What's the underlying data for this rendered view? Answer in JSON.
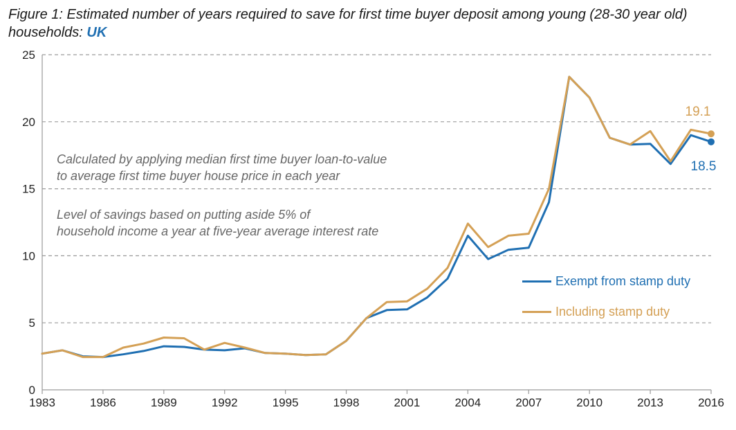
{
  "title": {
    "prefix": "Figure 1: Estimated number of years required to save for first time buyer deposit among young (28-30 year old) households: ",
    "highlight": "UK"
  },
  "annotations": {
    "line1": "Calculated by applying median first time buyer loan-to-value",
    "line2": "to average first time buyer house price in each year",
    "line3": "Level of savings based on putting aside 5% of",
    "line4": "household income a year at five-year average interest rate"
  },
  "colors": {
    "exempt": "#1f6fb2",
    "including": "#d4a055",
    "grid": "#9a9a9a",
    "axis": "#9a9a9a"
  },
  "chart_data": {
    "type": "line",
    "title": "",
    "xlabel": "",
    "ylabel": "",
    "x": [
      1983,
      1984,
      1985,
      1986,
      1987,
      1988,
      1989,
      1990,
      1991,
      1992,
      1993,
      1994,
      1995,
      1996,
      1997,
      1998,
      1999,
      2000,
      2001,
      2002,
      2003,
      2004,
      2005,
      2006,
      2007,
      2008,
      2009,
      2010,
      2011,
      2012,
      2013,
      2014,
      2015,
      2016
    ],
    "series": [
      {
        "name": "Exempt from stamp duty",
        "color": "#1f6fb2",
        "values": [
          2.7,
          2.95,
          2.5,
          2.45,
          2.65,
          2.9,
          3.25,
          3.2,
          3.0,
          2.95,
          3.1,
          2.75,
          2.7,
          2.6,
          2.65,
          3.65,
          5.35,
          5.95,
          6.0,
          6.9,
          8.3,
          11.5,
          9.75,
          10.45,
          10.6,
          14.0,
          23.35,
          21.8,
          18.8,
          18.3,
          18.35,
          16.85,
          19.0,
          18.5
        ]
      },
      {
        "name": "Including stamp duty",
        "color": "#d4a055",
        "values": [
          2.7,
          2.95,
          2.45,
          2.45,
          3.15,
          3.45,
          3.9,
          3.85,
          3.0,
          3.5,
          3.15,
          2.75,
          2.7,
          2.6,
          2.65,
          3.65,
          5.35,
          6.55,
          6.6,
          7.55,
          9.1,
          12.4,
          10.65,
          11.5,
          11.65,
          15.0,
          23.35,
          21.8,
          18.8,
          18.3,
          19.3,
          17.05,
          19.4,
          19.1
        ]
      }
    ],
    "end_labels": {
      "including": "19.1",
      "exempt": "18.5"
    },
    "ylim": [
      0,
      25
    ],
    "yticks": [
      0,
      5,
      10,
      15,
      20,
      25
    ],
    "xticks": [
      "1983",
      "1986",
      "1989",
      "1992",
      "1995",
      "1998",
      "2001",
      "2004",
      "2007",
      "2010",
      "2013",
      "2016"
    ],
    "xlim": [
      1983,
      2016
    ],
    "grid": "horizontal dashed",
    "legend_position": "right"
  }
}
